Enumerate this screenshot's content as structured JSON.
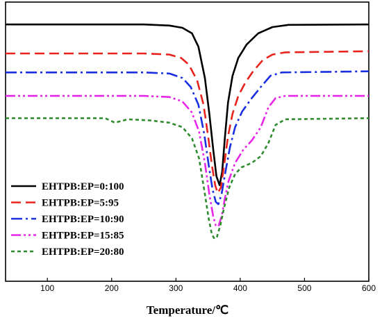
{
  "chart_data": {
    "type": "line",
    "title": "",
    "xlabel": "Temperature/℃",
    "ylabel": "",
    "xlim": [
      35,
      600
    ],
    "ylim": [
      -11.5,
      1.0
    ],
    "xticks": [
      100,
      200,
      300,
      400,
      500,
      600
    ],
    "yticks_visible": false,
    "grid": false,
    "legend_position": "bottom-left",
    "series": [
      {
        "name": "EHTPB:EP=0:100",
        "color": "#000000",
        "dash": "solid",
        "points": [
          [
            35,
            0
          ],
          [
            250,
            0
          ],
          [
            290,
            -0.05
          ],
          [
            310,
            -0.15
          ],
          [
            325,
            -0.4
          ],
          [
            335,
            -1.0
          ],
          [
            345,
            -2.4
          ],
          [
            352,
            -4.0
          ],
          [
            358,
            -5.6
          ],
          [
            363,
            -6.8
          ],
          [
            368,
            -7.2
          ],
          [
            372,
            -6.6
          ],
          [
            376,
            -5.1
          ],
          [
            381,
            -3.5
          ],
          [
            388,
            -2.3
          ],
          [
            397,
            -1.5
          ],
          [
            410,
            -0.9
          ],
          [
            428,
            -0.4
          ],
          [
            450,
            -0.12
          ],
          [
            475,
            -0.02
          ],
          [
            600,
            0
          ]
        ]
      },
      {
        "name": "EHTPB:EP=5:95",
        "color": "#e8221c",
        "dash": "14 7",
        "points": [
          [
            35,
            -1.3
          ],
          [
            250,
            -1.3
          ],
          [
            290,
            -1.35
          ],
          [
            308,
            -1.5
          ],
          [
            320,
            -1.8
          ],
          [
            333,
            -2.5
          ],
          [
            343,
            -3.6
          ],
          [
            350,
            -5.0
          ],
          [
            356,
            -6.3
          ],
          [
            361,
            -7.2
          ],
          [
            365,
            -7.55
          ],
          [
            370,
            -7.3
          ],
          [
            375,
            -6.3
          ],
          [
            381,
            -5.0
          ],
          [
            388,
            -4.0
          ],
          [
            397,
            -3.2
          ],
          [
            408,
            -2.6
          ],
          [
            420,
            -2.1
          ],
          [
            435,
            -1.6
          ],
          [
            450,
            -1.35
          ],
          [
            470,
            -1.25
          ],
          [
            600,
            -1.2
          ]
        ]
      },
      {
        "name": "EHTPB:EP=10:90",
        "color": "#1a2ee0",
        "dash": "16 5 3 5",
        "points": [
          [
            35,
            -2.15
          ],
          [
            250,
            -2.15
          ],
          [
            290,
            -2.2
          ],
          [
            310,
            -2.4
          ],
          [
            323,
            -2.8
          ],
          [
            335,
            -3.6
          ],
          [
            344,
            -4.9
          ],
          [
            351,
            -6.3
          ],
          [
            357,
            -7.4
          ],
          [
            362,
            -7.95
          ],
          [
            366,
            -8.05
          ],
          [
            371,
            -7.6
          ],
          [
            377,
            -6.6
          ],
          [
            384,
            -5.5
          ],
          [
            392,
            -4.6
          ],
          [
            403,
            -3.9
          ],
          [
            418,
            -3.3
          ],
          [
            432,
            -2.8
          ],
          [
            447,
            -2.3
          ],
          [
            465,
            -2.15
          ],
          [
            600,
            -2.1
          ]
        ]
      },
      {
        "name": "EHTPB:EP=15:85",
        "color": "#e826e8",
        "dash": "14 4 3 4 3 4",
        "points": [
          [
            35,
            -3.2
          ],
          [
            250,
            -3.2
          ],
          [
            290,
            -3.25
          ],
          [
            310,
            -3.45
          ],
          [
            325,
            -3.95
          ],
          [
            336,
            -4.8
          ],
          [
            345,
            -6.2
          ],
          [
            352,
            -7.6
          ],
          [
            358,
            -8.6
          ],
          [
            362,
            -9.0
          ],
          [
            366,
            -9.05
          ],
          [
            371,
            -8.6
          ],
          [
            376,
            -7.8
          ],
          [
            382,
            -7.0
          ],
          [
            392,
            -6.2
          ],
          [
            405,
            -5.6
          ],
          [
            418,
            -5.2
          ],
          [
            432,
            -4.6
          ],
          [
            444,
            -3.7
          ],
          [
            455,
            -3.3
          ],
          [
            470,
            -3.2
          ],
          [
            600,
            -3.2
          ]
        ]
      },
      {
        "name": "EHTPB:EP=20:80",
        "color": "#2e8b2e",
        "dash": "5 4",
        "points": [
          [
            35,
            -4.2
          ],
          [
            190,
            -4.2
          ],
          [
            205,
            -4.4
          ],
          [
            225,
            -4.25
          ],
          [
            260,
            -4.3
          ],
          [
            290,
            -4.4
          ],
          [
            310,
            -4.6
          ],
          [
            325,
            -5.1
          ],
          [
            336,
            -6.0
          ],
          [
            344,
            -7.4
          ],
          [
            351,
            -8.7
          ],
          [
            356,
            -9.4
          ],
          [
            360,
            -9.6
          ],
          [
            364,
            -9.5
          ],
          [
            369,
            -9.0
          ],
          [
            375,
            -8.2
          ],
          [
            383,
            -7.3
          ],
          [
            392,
            -6.7
          ],
          [
            402,
            -6.4
          ],
          [
            418,
            -6.2
          ],
          [
            432,
            -5.9
          ],
          [
            444,
            -5.3
          ],
          [
            455,
            -4.5
          ],
          [
            470,
            -4.25
          ],
          [
            600,
            -4.2
          ]
        ]
      }
    ]
  }
}
